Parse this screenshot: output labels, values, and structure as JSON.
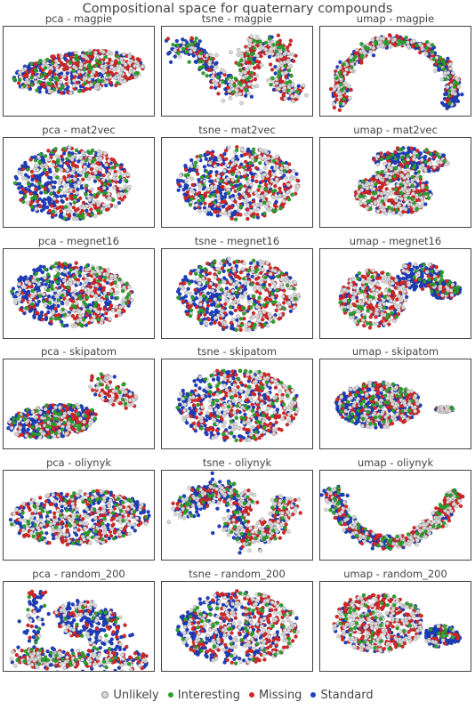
{
  "title": "Compositional space for quaternary compounds",
  "colors": {
    "Unlikely": "#d9d9d9",
    "Interesting": "#2ca02c",
    "Missing": "#d62728",
    "Standard": "#1f3fbf"
  },
  "legend": [
    "Unlikely",
    "Interesting",
    "Missing",
    "Standard"
  ],
  "chart_data": [
    {
      "type": "scatter",
      "title": "pca - magpie",
      "shape": "pca-magpie",
      "series": [
        "Unlikely",
        "Interesting",
        "Missing",
        "Standard"
      ]
    },
    {
      "type": "scatter",
      "title": "tsne - magpie",
      "shape": "tsne-magpie",
      "series": [
        "Unlikely",
        "Interesting",
        "Missing",
        "Standard"
      ]
    },
    {
      "type": "scatter",
      "title": "umap - magpie",
      "shape": "umap-magpie",
      "series": [
        "Unlikely",
        "Interesting",
        "Missing",
        "Standard"
      ]
    },
    {
      "type": "scatter",
      "title": "pca - mat2vec",
      "shape": "pca-mat2vec",
      "series": [
        "Unlikely",
        "Interesting",
        "Missing",
        "Standard"
      ]
    },
    {
      "type": "scatter",
      "title": "tsne - mat2vec",
      "shape": "tsne-blob",
      "series": [
        "Unlikely",
        "Interesting",
        "Missing",
        "Standard"
      ]
    },
    {
      "type": "scatter",
      "title": "umap - mat2vec",
      "shape": "umap-mat2vec",
      "series": [
        "Unlikely",
        "Interesting",
        "Missing",
        "Standard"
      ]
    },
    {
      "type": "scatter",
      "title": "pca - megnet16",
      "shape": "pca-megnet16",
      "series": [
        "Unlikely",
        "Interesting",
        "Missing",
        "Standard"
      ]
    },
    {
      "type": "scatter",
      "title": "tsne - megnet16",
      "shape": "tsne-blob",
      "series": [
        "Unlikely",
        "Interesting",
        "Missing",
        "Standard"
      ]
    },
    {
      "type": "scatter",
      "title": "umap - megnet16",
      "shape": "umap-megnet16",
      "series": [
        "Unlikely",
        "Interesting",
        "Missing",
        "Standard"
      ]
    },
    {
      "type": "scatter",
      "title": "pca - skipatom",
      "shape": "pca-skipatom",
      "series": [
        "Unlikely",
        "Interesting",
        "Missing",
        "Standard"
      ]
    },
    {
      "type": "scatter",
      "title": "tsne - skipatom",
      "shape": "tsne-blob",
      "series": [
        "Unlikely",
        "Interesting",
        "Missing",
        "Standard"
      ]
    },
    {
      "type": "scatter",
      "title": "umap - skipatom",
      "shape": "umap-skipatom",
      "series": [
        "Unlikely",
        "Interesting",
        "Missing",
        "Standard"
      ]
    },
    {
      "type": "scatter",
      "title": "pca - oliynyk",
      "shape": "pca-oliynyk",
      "series": [
        "Unlikely",
        "Interesting",
        "Missing",
        "Standard"
      ]
    },
    {
      "type": "scatter",
      "title": "tsne - oliynyk",
      "shape": "tsne-oliynyk",
      "series": [
        "Unlikely",
        "Interesting",
        "Missing",
        "Standard"
      ]
    },
    {
      "type": "scatter",
      "title": "umap - oliynyk",
      "shape": "umap-oliynyk",
      "series": [
        "Unlikely",
        "Interesting",
        "Missing",
        "Standard"
      ]
    },
    {
      "type": "scatter",
      "title": "pca - random_200",
      "shape": "pca-random",
      "series": [
        "Unlikely",
        "Interesting",
        "Missing",
        "Standard"
      ]
    },
    {
      "type": "scatter",
      "title": "tsne - random_200",
      "shape": "tsne-blob",
      "series": [
        "Unlikely",
        "Interesting",
        "Missing",
        "Standard"
      ]
    },
    {
      "type": "scatter",
      "title": "umap - random_200",
      "shape": "umap-random",
      "series": [
        "Unlikely",
        "Interesting",
        "Missing",
        "Standard"
      ]
    }
  ]
}
